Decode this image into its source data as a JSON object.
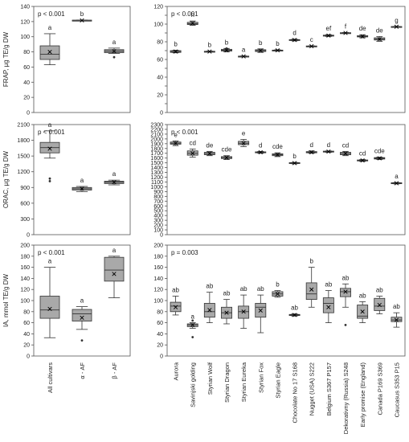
{
  "chart_data": [
    {
      "id": "p1",
      "type": "boxplot",
      "ylabel": "FRAP, µg TE/g DW",
      "ylim": [
        0,
        140
      ],
      "yticks": [
        0,
        20,
        40,
        60,
        80,
        100,
        120,
        140
      ],
      "pvalue": "p < 0.001",
      "categories": [
        "All cultivars",
        "α - AF",
        "β - AF"
      ],
      "boxes": [
        {
          "min": 63,
          "q1": 70,
          "median": 77,
          "q3": 88,
          "max": 104,
          "mean": 80,
          "outliers": [],
          "letter": "a"
        },
        {
          "min": 121,
          "q1": 121.3,
          "median": 121.6,
          "q3": 121.9,
          "max": 122,
          "mean": 121.6,
          "outliers": [],
          "letter": "b"
        },
        {
          "min": 78,
          "q1": 79,
          "median": 81,
          "q3": 83,
          "max": 85,
          "mean": 81,
          "outliers": [
            73
          ],
          "letter": "a"
        }
      ]
    },
    {
      "id": "p2",
      "type": "boxplot",
      "ylabel": "",
      "ylim": [
        0,
        120
      ],
      "yticks": [
        0,
        10,
        20,
        30,
        40,
        50,
        60,
        70,
        80,
        90,
        100,
        110,
        120
      ],
      "pvalue": "p < 0.001",
      "categories": [
        "Aurora",
        "Savinjski golding",
        "Styrian Wolf",
        "Styrian Dragon",
        "Styrian Eureka",
        "Styrian Fox",
        "Styrian Eagle",
        "Chocolate No 17 S168",
        "Nugget (USA) S222",
        "Belgium S367 P157",
        "Dekorativny (Russia) S248",
        "Early promise (England)",
        "Canada P169 S369",
        "Caucasus S353 P15"
      ],
      "boxes": [
        {
          "min": 67.5,
          "q1": 68,
          "median": 69,
          "q3": 70,
          "max": 70.5,
          "mean": 69,
          "outliers": [],
          "letter": "b"
        },
        {
          "min": 98.5,
          "q1": 99.5,
          "median": 100.5,
          "q3": 102,
          "max": 103.5,
          "mean": 101,
          "outliers": [],
          "letter": "h"
        },
        {
          "min": 68.5,
          "q1": 68.8,
          "median": 69,
          "q3": 69.3,
          "max": 69.5,
          "mean": 69,
          "outliers": [],
          "letter": "b"
        },
        {
          "min": 68.5,
          "q1": 69.5,
          "median": 70.5,
          "q3": 71.5,
          "max": 72.5,
          "mean": 70.5,
          "outliers": [
            72.5
          ],
          "letter": "b"
        },
        {
          "min": 63,
          "q1": 63.3,
          "median": 63.5,
          "q3": 63.8,
          "max": 64,
          "mean": 63.5,
          "outliers": [],
          "letter": "a"
        },
        {
          "min": 68,
          "q1": 69,
          "median": 70,
          "q3": 71,
          "max": 72,
          "mean": 70,
          "outliers": [],
          "letter": "b"
        },
        {
          "min": 69.5,
          "q1": 70,
          "median": 70.3,
          "q3": 70.6,
          "max": 71,
          "mean": 70.3,
          "outliers": [],
          "letter": "b"
        },
        {
          "min": 81,
          "q1": 81.5,
          "median": 82,
          "q3": 82.5,
          "max": 83,
          "mean": 82,
          "outliers": [],
          "letter": "d"
        },
        {
          "min": 74.5,
          "q1": 74.8,
          "median": 75,
          "q3": 75.3,
          "max": 75.5,
          "mean": 75,
          "outliers": [],
          "letter": "c"
        },
        {
          "min": 86,
          "q1": 86.5,
          "median": 87,
          "q3": 87.5,
          "max": 88,
          "mean": 87,
          "outliers": [],
          "letter": "ef"
        },
        {
          "min": 89.5,
          "q1": 89.8,
          "median": 90,
          "q3": 90.3,
          "max": 90.5,
          "mean": 90,
          "outliers": [],
          "letter": "f"
        },
        {
          "min": 84.5,
          "q1": 85.5,
          "median": 86,
          "q3": 87,
          "max": 88,
          "mean": 86,
          "outliers": [],
          "letter": "de"
        },
        {
          "min": 80.5,
          "q1": 82,
          "median": 83,
          "q3": 84.5,
          "max": 86,
          "mean": 83,
          "outliers": [],
          "letter": "de"
        },
        {
          "min": 96.5,
          "q1": 96.8,
          "median": 97,
          "q3": 97.3,
          "max": 97.5,
          "mean": 97,
          "outliers": [],
          "letter": "g"
        }
      ]
    },
    {
      "id": "p3",
      "type": "boxplot",
      "ylabel": "ORAC, µg TE/g DW",
      "ylim": [
        0,
        2100
      ],
      "yticks": [
        0,
        300,
        600,
        900,
        1200,
        1500,
        1800,
        2100
      ],
      "pvalue": "p < 0.001",
      "categories": [
        "All cultivars",
        "α - AF",
        "β - AF"
      ],
      "boxes": [
        {
          "min": 1460,
          "q1": 1560,
          "median": 1660,
          "q3": 1760,
          "max": 1980,
          "mean": 1640,
          "outliers": [
            1070,
            1020
          ],
          "letter": "a"
        },
        {
          "min": 820,
          "q1": 850,
          "median": 875,
          "q3": 900,
          "max": 920,
          "mean": 875,
          "outliers": [],
          "letter": "a"
        },
        {
          "min": 950,
          "q1": 975,
          "median": 1000,
          "q3": 1020,
          "max": 1040,
          "mean": 1000,
          "outliers": [],
          "letter": "a"
        }
      ]
    },
    {
      "id": "p4",
      "type": "boxplot",
      "ylabel": "",
      "ylim": [
        0,
        2300
      ],
      "yticks": [
        0,
        100,
        200,
        300,
        400,
        500,
        600,
        700,
        800,
        900,
        1000,
        1100,
        1200,
        1300,
        1400,
        1500,
        1600,
        1700,
        1800,
        1900,
        2000,
        2100,
        2200,
        2300
      ],
      "pvalue": "p < 0.001",
      "categories": [
        "Aurora",
        "Savinjski golding",
        "Styrian Wolf",
        "Styrian Dragon",
        "Styrian Eureka",
        "Styrian Fox",
        "Styrian Eagle",
        "Chocolate No 17 S168",
        "Nugget (USA) S222",
        "Belgium S367 P157",
        "Dekorativny (Russia) S248",
        "Early promise (England)",
        "Canada P169 S369",
        "Caucasus S353 P15"
      ],
      "boxes": [
        {
          "min": 1860,
          "q1": 1890,
          "median": 1910,
          "q3": 1935,
          "max": 1960,
          "mean": 1910,
          "outliers": [],
          "letter": "e"
        },
        {
          "min": 1620,
          "q1": 1660,
          "median": 1700,
          "q3": 1750,
          "max": 1790,
          "mean": 1700,
          "outliers": [],
          "letter": "cd"
        },
        {
          "min": 1650,
          "q1": 1670,
          "median": 1695,
          "q3": 1720,
          "max": 1740,
          "mean": 1695,
          "outliers": [],
          "letter": "de"
        },
        {
          "min": 1570,
          "q1": 1590,
          "median": 1610,
          "q3": 1630,
          "max": 1650,
          "mean": 1610,
          "outliers": [],
          "letter": "cde"
        },
        {
          "min": 1840,
          "q1": 1880,
          "median": 1910,
          "q3": 1950,
          "max": 1990,
          "mean": 1910,
          "outliers": [],
          "letter": "e"
        },
        {
          "min": 1700,
          "q1": 1710,
          "median": 1720,
          "q3": 1730,
          "max": 1740,
          "mean": 1720,
          "outliers": [],
          "letter": "d"
        },
        {
          "min": 1630,
          "q1": 1650,
          "median": 1670,
          "q3": 1690,
          "max": 1710,
          "mean": 1670,
          "outliers": [],
          "letter": "cde"
        },
        {
          "min": 1480,
          "q1": 1485,
          "median": 1495,
          "q3": 1505,
          "max": 1510,
          "mean": 1495,
          "outliers": [],
          "letter": "b"
        },
        {
          "min": 1700,
          "q1": 1710,
          "median": 1720,
          "q3": 1735,
          "max": 1750,
          "mean": 1720,
          "outliers": [],
          "letter": "d"
        },
        {
          "min": 1720,
          "q1": 1725,
          "median": 1735,
          "q3": 1745,
          "max": 1750,
          "mean": 1735,
          "outliers": [],
          "letter": "d"
        },
        {
          "min": 1650,
          "q1": 1670,
          "median": 1695,
          "q3": 1720,
          "max": 1740,
          "mean": 1695,
          "outliers": [],
          "letter": "cd"
        },
        {
          "min": 1530,
          "q1": 1540,
          "median": 1550,
          "q3": 1560,
          "max": 1570,
          "mean": 1550,
          "outliers": [],
          "letter": "cd"
        },
        {
          "min": 1570,
          "q1": 1580,
          "median": 1595,
          "q3": 1610,
          "max": 1620,
          "mean": 1595,
          "outliers": [],
          "letter": "cde"
        },
        {
          "min": 1060,
          "q1": 1065,
          "median": 1075,
          "q3": 1085,
          "max": 1090,
          "mean": 1075,
          "outliers": [],
          "letter": "a"
        }
      ]
    },
    {
      "id": "p5",
      "type": "boxplot",
      "ylabel": "IA, mmol TE/g DW",
      "ylim": [
        0,
        200
      ],
      "yticks": [
        0,
        20,
        40,
        60,
        80,
        100,
        120,
        140,
        160,
        180,
        200
      ],
      "pvalue": "p < 0.001",
      "categories": [
        "All cultivars",
        "α - AF",
        "β - AF"
      ],
      "boxes": [
        {
          "min": 33,
          "q1": 68,
          "median": 83,
          "q3": 108,
          "max": 160,
          "mean": 85,
          "outliers": [],
          "letter": "a"
        },
        {
          "min": 48,
          "q1": 63,
          "median": 76,
          "q3": 84,
          "max": 89,
          "mean": 69,
          "outliers": [
            28
          ],
          "letter": "a"
        },
        {
          "min": 105,
          "q1": 135,
          "median": 155,
          "q3": 178,
          "max": 180,
          "mean": 148,
          "outliers": [],
          "letter": "a"
        }
      ]
    },
    {
      "id": "p6",
      "type": "boxplot",
      "ylabel": "",
      "ylim": [
        0,
        200
      ],
      "yticks": [
        0,
        20,
        40,
        60,
        80,
        100,
        120,
        140,
        160,
        180,
        200
      ],
      "pvalue": "p = 0.003",
      "categories": [
        "Aurora",
        "Savinjski golding",
        "Styrian Wolf",
        "Styrian Dragon",
        "Styrian Eureka",
        "Styrian Fox",
        "Styrian Eagle",
        "Chocolate No 17 S168",
        "Nugget (USA) S222",
        "Belgium S367 P157",
        "Dekorativny (Russia) S248",
        "Early promise (England)",
        "Canada P169 S369",
        "Caucasus S353 P15"
      ],
      "boxes": [
        {
          "min": 74,
          "q1": 80,
          "median": 90,
          "q3": 97,
          "max": 108,
          "mean": 88,
          "outliers": [],
          "letter": "ab"
        },
        {
          "min": 50,
          "q1": 53,
          "median": 56,
          "q3": 58,
          "max": 60,
          "mean": 56,
          "outliers": [
            64,
            34
          ],
          "letter": "a"
        },
        {
          "min": 60,
          "q1": 70,
          "median": 80,
          "q3": 95,
          "max": 115,
          "mean": 83,
          "outliers": [],
          "letter": "ab"
        },
        {
          "min": 58,
          "q1": 68,
          "median": 78,
          "q3": 88,
          "max": 102,
          "mean": 78,
          "outliers": [],
          "letter": "ab"
        },
        {
          "min": 50,
          "q1": 68,
          "median": 80,
          "q3": 90,
          "max": 110,
          "mean": 80,
          "outliers": [],
          "letter": "ab"
        },
        {
          "min": 42,
          "q1": 70,
          "median": 88,
          "q3": 95,
          "max": 110,
          "mean": 82,
          "outliers": [],
          "letter": "ab"
        },
        {
          "min": 106,
          "q1": 108,
          "median": 112,
          "q3": 116,
          "max": 118,
          "mean": 112,
          "outliers": [],
          "letter": "b"
        },
        {
          "min": 72,
          "q1": 73,
          "median": 74,
          "q3": 75,
          "max": 76,
          "mean": 74,
          "outliers": [],
          "letter": "ab"
        },
        {
          "min": 88,
          "q1": 102,
          "median": 112,
          "q3": 132,
          "max": 160,
          "mean": 120,
          "outliers": [],
          "letter": "b"
        },
        {
          "min": 60,
          "q1": 78,
          "median": 95,
          "q3": 105,
          "max": 118,
          "mean": 88,
          "outliers": [],
          "letter": "ab"
        },
        {
          "min": 88,
          "q1": 107,
          "median": 116,
          "q3": 122,
          "max": 130,
          "mean": 116,
          "outliers": [
            56
          ],
          "letter": "ab"
        },
        {
          "min": 60,
          "q1": 68,
          "median": 72,
          "q3": 92,
          "max": 98,
          "mean": 80,
          "outliers": [],
          "letter": "ab"
        },
        {
          "min": 76,
          "q1": 82,
          "median": 90,
          "q3": 104,
          "max": 108,
          "mean": 92,
          "outliers": [],
          "letter": "ab"
        },
        {
          "min": 52,
          "q1": 62,
          "median": 65,
          "q3": 70,
          "max": 78,
          "mean": 65,
          "outliers": [],
          "letter": "ab"
        }
      ]
    }
  ]
}
